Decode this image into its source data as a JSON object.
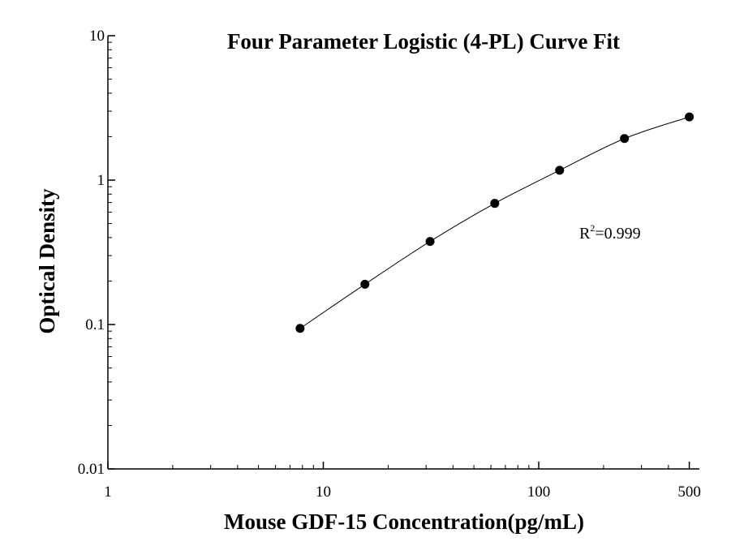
{
  "chart_data": {
    "type": "scatter",
    "title": "Four Parameter Logistic (4-PL) Curve Fit",
    "xlabel": "Mouse GDF-15 Concentration(pg/mL)",
    "ylabel": "Optical Density",
    "x_scale": "log",
    "y_scale": "log",
    "xlim": [
      1,
      500
    ],
    "ylim": [
      0.01,
      10
    ],
    "x_ticks": [
      {
        "value": 1,
        "label": "1"
      },
      {
        "value": 10,
        "label": "10"
      },
      {
        "value": 100,
        "label": "100"
      },
      {
        "value": 500,
        "label": "500"
      }
    ],
    "y_ticks": [
      {
        "value": 0.01,
        "label": "0.01"
      },
      {
        "value": 0.1,
        "label": "0.1"
      },
      {
        "value": 1,
        "label": "1"
      },
      {
        "value": 10,
        "label": "10"
      }
    ],
    "series": [
      {
        "x": [
          7.8,
          15.6,
          31.3,
          62.5,
          125,
          250,
          500
        ],
        "y": [
          0.094,
          0.19,
          0.376,
          0.69,
          1.17,
          1.94,
          2.74
        ]
      }
    ],
    "annotation": {
      "prefix": "R",
      "superscript": "2",
      "suffix": "=0.999"
    },
    "grid": false,
    "legend": "none"
  }
}
